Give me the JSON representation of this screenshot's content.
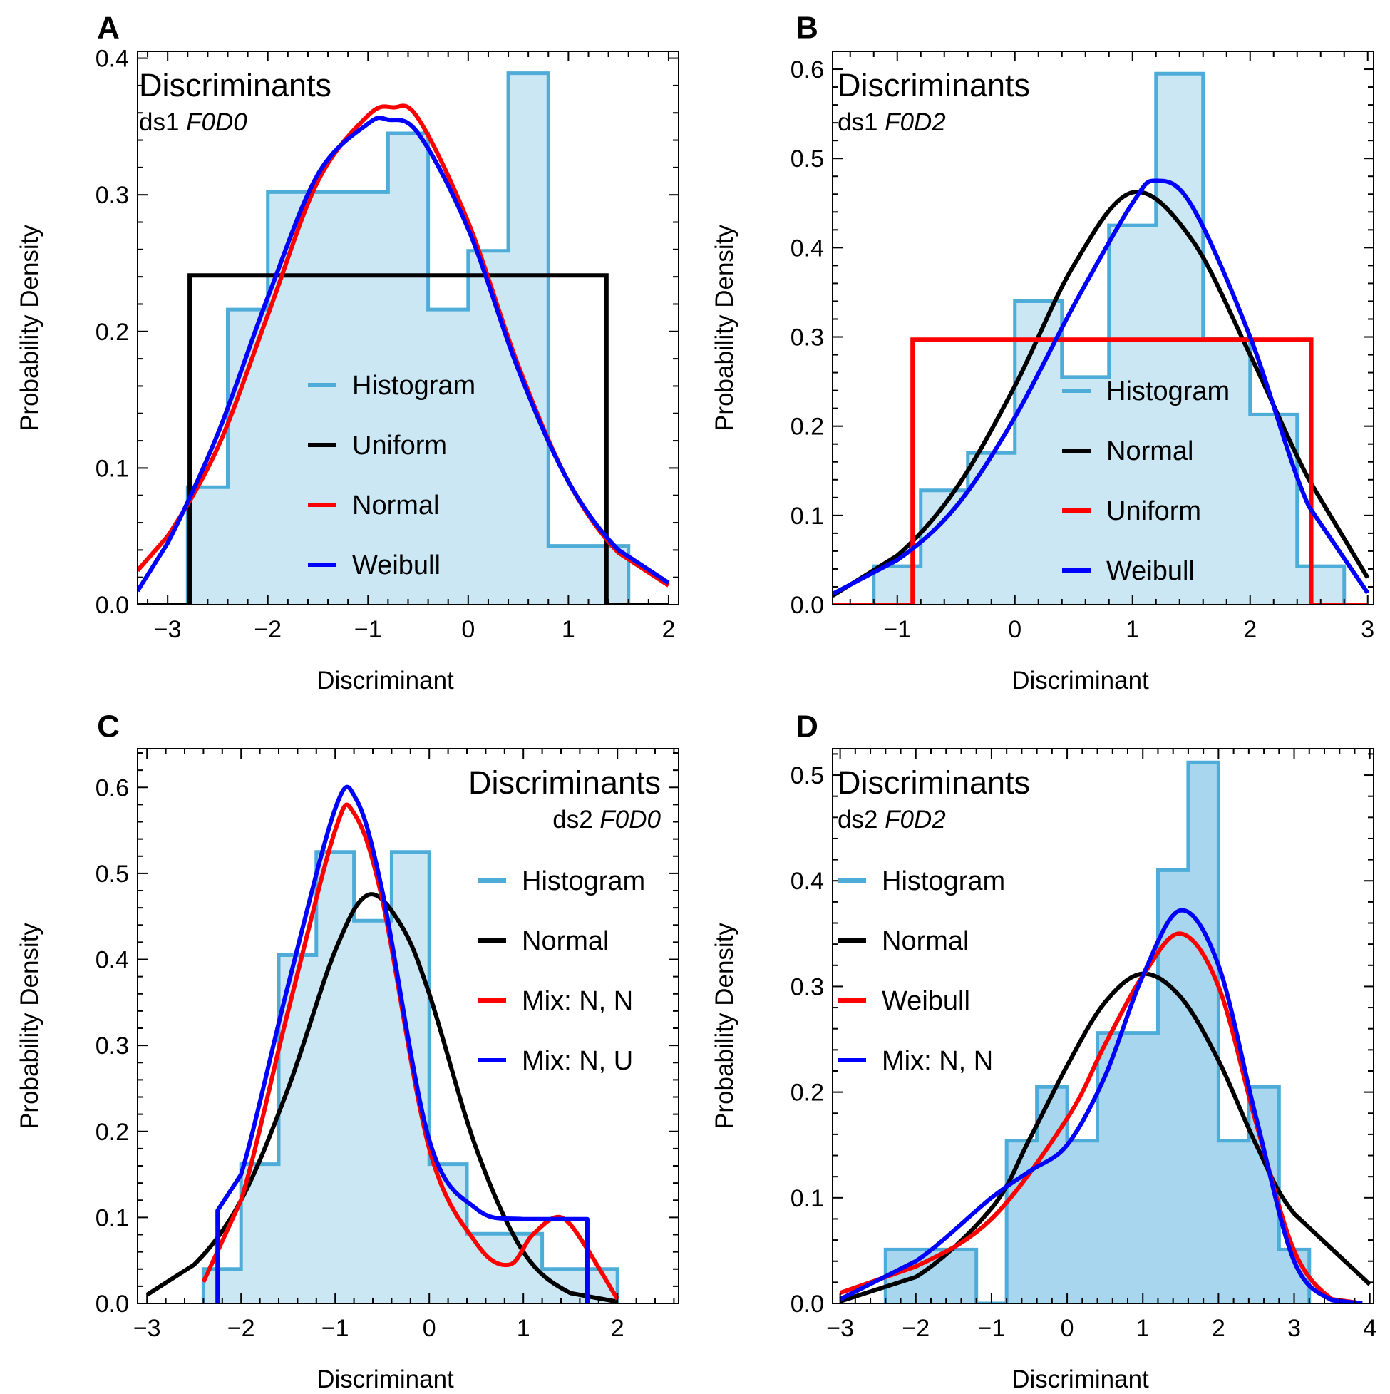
{
  "chart_data": [
    {
      "type": "line",
      "panel": "A",
      "annotation": {
        "title": "Discriminants",
        "dataset": "ds1",
        "code": "F0D0"
      },
      "xlabel": "Discriminant",
      "ylabel": "Probability Density",
      "xlim": [
        -3.3,
        2.1
      ],
      "ylim": [
        0,
        0.405
      ],
      "xticks": [
        -3,
        -2,
        -1,
        0,
        1,
        2
      ],
      "yticks": [
        0.0,
        0.1,
        0.2,
        0.3,
        0.4
      ],
      "legend_position": "center",
      "legend": [
        {
          "name": "Histogram",
          "color": "#4eacd8"
        },
        {
          "name": "Uniform",
          "color": "#000000"
        },
        {
          "name": "Normal",
          "color": "#ff0000"
        },
        {
          "name": "Weibull",
          "color": "#0000ff"
        }
      ],
      "histogram": {
        "color": "#4eacd8",
        "fill": "#cbe7f4",
        "edges": [
          -2.8,
          -2.4,
          -2.0,
          -0.8,
          -0.4,
          0.0,
          0.4,
          0.8,
          1.6
        ],
        "values": [
          0.086,
          0.216,
          0.302,
          0.345,
          0.216,
          0.259,
          0.389,
          0.043
        ]
      },
      "series": [
        {
          "name": "Uniform",
          "color": "#000000",
          "x": [
            -3.3,
            -2.78,
            -2.78,
            1.38,
            1.38,
            2.0
          ],
          "y": [
            0,
            0,
            0.241,
            0.241,
            0,
            0
          ]
        },
        {
          "name": "Normal",
          "color": "#ff0000",
          "x": [
            -3.3,
            -3.0,
            -2.5,
            -2.0,
            -1.5,
            -1.0,
            -0.75,
            -0.5,
            0.0,
            0.5,
            1.0,
            1.5,
            2.0
          ],
          "y": [
            0.025,
            0.05,
            0.115,
            0.212,
            0.31,
            0.358,
            0.364,
            0.356,
            0.28,
            0.175,
            0.09,
            0.038,
            0.014
          ]
        },
        {
          "name": "Weibull",
          "color": "#0000ff",
          "x": [
            -3.3,
            -3.0,
            -2.5,
            -2.0,
            -1.5,
            -1.0,
            -0.8,
            -0.5,
            0.0,
            0.5,
            1.0,
            1.5,
            2.0
          ],
          "y": [
            0.01,
            0.045,
            0.125,
            0.225,
            0.315,
            0.352,
            0.355,
            0.345,
            0.275,
            0.172,
            0.09,
            0.04,
            0.016
          ]
        }
      ]
    },
    {
      "type": "line",
      "panel": "B",
      "annotation": {
        "title": "Discriminants",
        "dataset": "ds1",
        "code": "F0D2"
      },
      "xlabel": "Discriminant",
      "ylabel": "Probability Density",
      "xlim": [
        -1.55,
        3.05
      ],
      "ylim": [
        0,
        0.62
      ],
      "xticks": [
        -1,
        0,
        1,
        2,
        3
      ],
      "yticks": [
        0.0,
        0.1,
        0.2,
        0.3,
        0.4,
        0.5,
        0.6
      ],
      "legend_position": "center-right",
      "legend": [
        {
          "name": "Histogram",
          "color": "#4eacd8"
        },
        {
          "name": "Normal",
          "color": "#000000"
        },
        {
          "name": "Uniform",
          "color": "#ff0000"
        },
        {
          "name": "Weibull",
          "color": "#0000ff"
        }
      ],
      "histogram": {
        "color": "#4eacd8",
        "fill": "#cbe7f4",
        "edges": [
          -1.2,
          -0.8,
          -0.4,
          0.0,
          0.4,
          0.8,
          1.2,
          1.6,
          2.0,
          2.4,
          2.8
        ],
        "values": [
          0.043,
          0.128,
          0.17,
          0.34,
          0.255,
          0.425,
          0.595,
          0.298,
          0.213,
          0.043
        ]
      },
      "series": [
        {
          "name": "Normal",
          "color": "#000000",
          "x": [
            -1.55,
            -1.0,
            -0.5,
            0.0,
            0.5,
            1.0,
            1.5,
            2.0,
            2.5,
            3.0
          ],
          "y": [
            0.01,
            0.055,
            0.13,
            0.245,
            0.38,
            0.462,
            0.41,
            0.28,
            0.14,
            0.03
          ]
        },
        {
          "name": "Uniform",
          "color": "#ff0000",
          "x": [
            -1.55,
            -0.87,
            -0.87,
            2.52,
            2.52,
            3.0
          ],
          "y": [
            0,
            0,
            0.297,
            0.297,
            0,
            0
          ]
        },
        {
          "name": "Weibull",
          "color": "#0000ff",
          "x": [
            -1.55,
            -1.0,
            -0.5,
            0.0,
            0.5,
            1.0,
            1.2,
            1.5,
            2.0,
            2.5,
            3.0
          ],
          "y": [
            0.012,
            0.05,
            0.11,
            0.21,
            0.335,
            0.45,
            0.475,
            0.448,
            0.3,
            0.11,
            0.013
          ]
        }
      ]
    },
    {
      "type": "line",
      "panel": "C",
      "annotation": {
        "title": "Discriminants",
        "dataset": "ds2",
        "code": "F0D0"
      },
      "xlabel": "Discriminant",
      "ylabel": "Probability Density",
      "xlim": [
        -3.1,
        2.65
      ],
      "ylim": [
        0,
        0.645
      ],
      "xticks": [
        -3,
        -2,
        -1,
        0,
        1,
        2
      ],
      "yticks": [
        0.0,
        0.1,
        0.2,
        0.3,
        0.4,
        0.5,
        0.6
      ],
      "legend_position": "right",
      "legend": [
        {
          "name": "Histogram",
          "color": "#4eacd8"
        },
        {
          "name": "Normal",
          "color": "#000000"
        },
        {
          "name": "Mix: N, N",
          "color": "#ff0000"
        },
        {
          "name": "Mix: N, U",
          "color": "#0000ff"
        }
      ],
      "histogram": {
        "color": "#4eacd8",
        "fill": "#cbe7f4",
        "edges": [
          -2.4,
          -2.0,
          -1.6,
          -1.2,
          -0.8,
          -0.4,
          0.0,
          0.4,
          0.8,
          1.2,
          1.6,
          2.0
        ],
        "values": [
          0.04,
          0.162,
          0.405,
          0.525,
          0.445,
          0.525,
          0.162,
          0.081,
          0.081,
          0.04,
          0.04
        ]
      },
      "series": [
        {
          "name": "Normal",
          "color": "#000000",
          "x": [
            -3.0,
            -2.5,
            -2.0,
            -1.5,
            -1.0,
            -0.65,
            -0.3,
            0.0,
            0.5,
            1.0,
            1.5,
            2.0
          ],
          "y": [
            0.01,
            0.045,
            0.12,
            0.25,
            0.41,
            0.475,
            0.44,
            0.36,
            0.18,
            0.06,
            0.012,
            0.002
          ]
        },
        {
          "name": "Mix: N, N",
          "color": "#ff0000",
          "x": [
            -2.4,
            -2.0,
            -1.5,
            -1.0,
            -0.8,
            -0.5,
            0.0,
            0.5,
            0.85,
            1.1,
            1.4,
            1.7,
            2.0
          ],
          "y": [
            0.025,
            0.12,
            0.34,
            0.55,
            0.57,
            0.47,
            0.18,
            0.07,
            0.045,
            0.08,
            0.1,
            0.06,
            0.005
          ]
        },
        {
          "name": "Mix: N, U",
          "color": "#0000ff",
          "x": [
            -2.25,
            -2.25,
            -2.0,
            -1.5,
            -1.0,
            -0.78,
            -0.5,
            0.0,
            0.5,
            1.0,
            1.68,
            1.68
          ],
          "y": [
            0.0,
            0.108,
            0.15,
            0.37,
            0.575,
            0.587,
            0.48,
            0.19,
            0.11,
            0.098,
            0.098,
            0.0
          ]
        }
      ]
    },
    {
      "type": "line",
      "panel": "D",
      "annotation": {
        "title": "Discriminants",
        "dataset": "ds2",
        "code": "F0D2"
      },
      "xlabel": "Discriminant",
      "ylabel": "Probability Density",
      "xlim": [
        -3.1,
        4.05
      ],
      "ylim": [
        0,
        0.525
      ],
      "xticks": [
        -3,
        -2,
        -1,
        0,
        1,
        2,
        3,
        4
      ],
      "yticks": [
        0.0,
        0.1,
        0.2,
        0.3,
        0.4,
        0.5
      ],
      "legend_position": "top-left",
      "legend": [
        {
          "name": "Histogram",
          "color": "#4eacd8"
        },
        {
          "name": "Normal",
          "color": "#000000"
        },
        {
          "name": "Weibull",
          "color": "#ff0000"
        },
        {
          "name": "Mix: N, N",
          "color": "#0000ff"
        }
      ],
      "histogram": {
        "color": "#4eacd8",
        "fill": "#a8d6ee",
        "edges": [
          -2.4,
          -1.2,
          -0.8,
          -0.4,
          0.0,
          0.4,
          1.2,
          1.6,
          2.0,
          2.4,
          2.8,
          3.2
        ],
        "values": [
          0.051,
          0.0,
          0.154,
          0.205,
          0.154,
          0.256,
          0.41,
          0.512,
          0.154,
          0.205,
          0.051
        ]
      },
      "series": [
        {
          "name": "Normal",
          "color": "#000000",
          "x": [
            -3.0,
            -2.0,
            -1.0,
            -0.5,
            0.0,
            0.5,
            1.0,
            1.5,
            2.0,
            2.5,
            3.0,
            4.0
          ],
          "y": [
            0.002,
            0.025,
            0.09,
            0.155,
            0.225,
            0.285,
            0.312,
            0.29,
            0.23,
            0.15,
            0.085,
            0.018
          ]
        },
        {
          "name": "Weibull",
          "color": "#ff0000",
          "x": [
            -3.0,
            -2.0,
            -1.0,
            0.0,
            0.5,
            1.0,
            1.5,
            2.0,
            2.5,
            3.0,
            3.5,
            3.9
          ],
          "y": [
            0.01,
            0.035,
            0.08,
            0.175,
            0.245,
            0.31,
            0.35,
            0.3,
            0.17,
            0.05,
            0.004,
            0.0
          ]
        },
        {
          "name": "Mix: N, N",
          "color": "#0000ff",
          "x": [
            -3.0,
            -2.0,
            -1.0,
            -0.5,
            0.0,
            0.5,
            1.0,
            1.5,
            2.0,
            2.5,
            3.0,
            3.5,
            3.9
          ],
          "y": [
            0.004,
            0.04,
            0.1,
            0.125,
            0.15,
            0.215,
            0.31,
            0.372,
            0.32,
            0.175,
            0.04,
            0.003,
            0.0
          ]
        }
      ]
    }
  ]
}
